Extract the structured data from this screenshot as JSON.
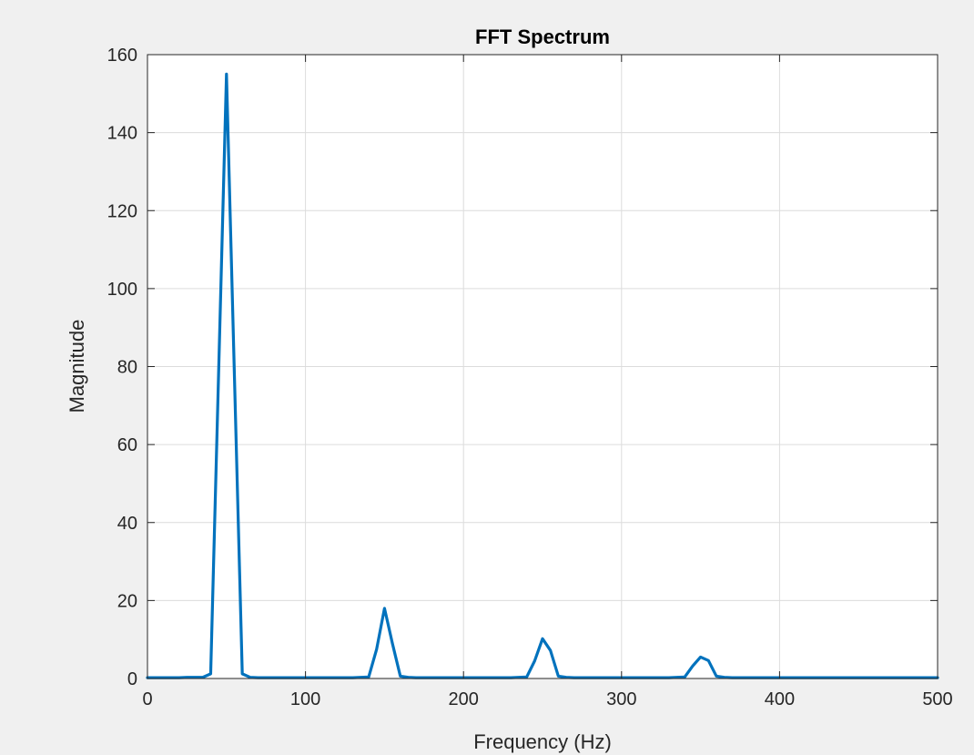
{
  "chart_data": {
    "type": "line",
    "title": "FFT Spectrum",
    "xlabel": "Frequency (Hz)",
    "ylabel": "Magnitude",
    "xlim": [
      0,
      500
    ],
    "ylim": [
      0,
      160
    ],
    "xticks": [
      0,
      100,
      200,
      300,
      400,
      500
    ],
    "yticks": [
      0,
      20,
      40,
      60,
      80,
      100,
      120,
      140,
      160
    ],
    "grid": true,
    "colors": {
      "line": "#0072bd",
      "axes_bg": "#ffffff",
      "figure_bg": "#f0f0f0",
      "grid": "#dcdcdc",
      "axis": "#262626"
    },
    "series": [
      {
        "x": [
          0,
          5,
          10,
          15,
          20,
          25,
          30,
          35,
          40,
          45,
          50,
          55,
          60,
          65,
          70,
          75,
          80,
          90,
          100,
          110,
          120,
          130,
          140,
          145,
          150,
          155,
          160,
          165,
          170,
          180,
          190,
          200,
          210,
          220,
          230,
          240,
          245,
          250,
          255,
          260,
          265,
          270,
          280,
          290,
          300,
          310,
          320,
          330,
          340,
          345,
          350,
          355,
          360,
          365,
          370,
          380,
          390,
          400,
          410,
          420,
          430,
          440,
          450,
          460,
          470,
          480,
          490,
          500
        ],
        "y": [
          0.2,
          0.2,
          0.2,
          0.2,
          0.2,
          0.3,
          0.3,
          0.3,
          1.2,
          78,
          155,
          78,
          1.2,
          0.3,
          0.2,
          0.2,
          0.2,
          0.2,
          0.2,
          0.2,
          0.2,
          0.2,
          0.4,
          7.5,
          18,
          9,
          0.6,
          0.3,
          0.2,
          0.2,
          0.2,
          0.2,
          0.2,
          0.2,
          0.2,
          0.4,
          4.5,
          10.2,
          7.2,
          0.6,
          0.3,
          0.2,
          0.2,
          0.2,
          0.2,
          0.2,
          0.2,
          0.2,
          0.4,
          3.2,
          5.5,
          4.6,
          0.6,
          0.3,
          0.2,
          0.2,
          0.2,
          0.2,
          0.2,
          0.2,
          0.2,
          0.2,
          0.2,
          0.2,
          0.2,
          0.2,
          0.2,
          0.2
        ]
      }
    ]
  }
}
